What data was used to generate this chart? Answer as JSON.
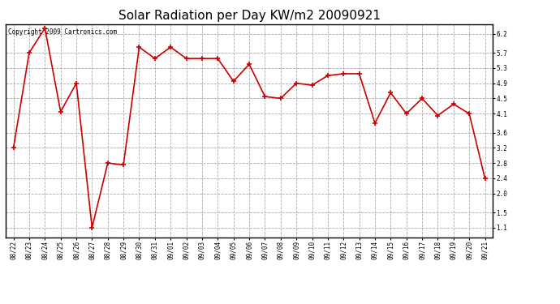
{
  "title": "Solar Radiation per Day KW/m2 20090921",
  "copyright_text": "Copyright 2009 Cartronics.com",
  "dates": [
    "08/22",
    "08/23",
    "08/24",
    "08/25",
    "08/26",
    "08/27",
    "08/28",
    "08/29",
    "08/30",
    "08/31",
    "09/01",
    "09/02",
    "09/03",
    "09/04",
    "09/05",
    "09/06",
    "09/07",
    "09/08",
    "09/09",
    "09/10",
    "09/11",
    "09/12",
    "09/13",
    "09/14",
    "09/15",
    "09/16",
    "09/17",
    "09/18",
    "09/19",
    "09/20",
    "09/21"
  ],
  "values": [
    3.2,
    5.7,
    6.35,
    4.15,
    4.9,
    1.1,
    2.8,
    2.75,
    5.85,
    5.55,
    5.85,
    5.55,
    5.55,
    5.55,
    4.95,
    5.4,
    4.55,
    4.5,
    4.9,
    4.85,
    5.1,
    5.15,
    5.15,
    3.85,
    4.65,
    4.1,
    4.5,
    4.05,
    4.35,
    4.1,
    2.4
  ],
  "line_color": "#cc0000",
  "marker": "+",
  "marker_size": 4,
  "marker_linewidth": 1.2,
  "line_width": 1.2,
  "bg_color": "#ffffff",
  "plot_bg_color": "#ffffff",
  "grid_color": "#aaaaaa",
  "grid_linestyle": "--",
  "yticks": [
    1.1,
    1.5,
    2.0,
    2.4,
    2.8,
    3.2,
    3.6,
    4.1,
    4.5,
    4.9,
    5.3,
    5.7,
    6.2
  ],
  "ylim": [
    0.85,
    6.45
  ],
  "title_fontsize": 11,
  "tick_fontsize": 5.5,
  "copyright_fontsize": 5.5
}
